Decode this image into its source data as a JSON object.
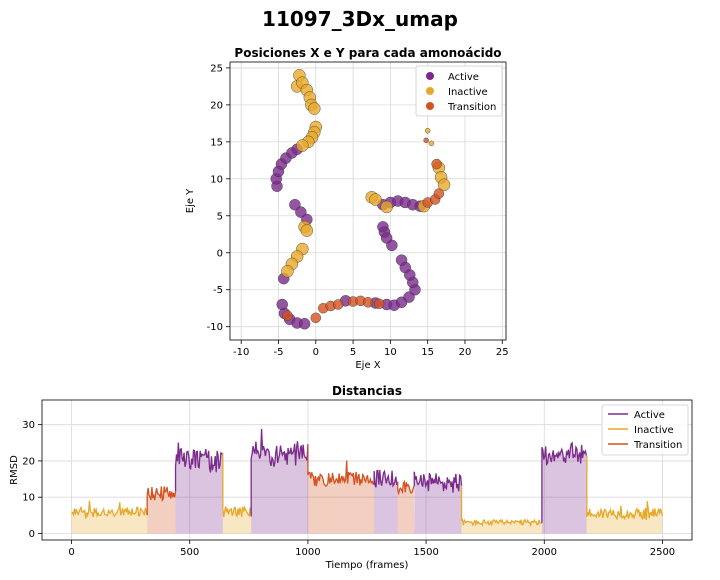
{
  "figure": {
    "title": "11097_3Dx_umap"
  },
  "colors": {
    "Active": "#7b2a8c",
    "Inactive": "#e8a92a",
    "Transition": "#d4521f"
  },
  "chart_data": [
    {
      "type": "scatter",
      "title": "Posiciones X e Y para cada amonoácido",
      "xlabel": "Eje X",
      "ylabel": "Eje Y",
      "xlim": [
        -11.5,
        25.5
      ],
      "ylim": [
        -11.8,
        25.8
      ],
      "xticks": [
        -10,
        -5,
        0,
        5,
        10,
        15,
        20,
        25
      ],
      "yticks": [
        -10,
        -5,
        0,
        5,
        10,
        15,
        20,
        25
      ],
      "grid": true,
      "legend_position": "top-right",
      "series": [
        {
          "name": "Active",
          "points": [
            [
              -5.2,
              9.0
            ],
            [
              -5.3,
              10.0
            ],
            [
              -5.0,
              11.0
            ],
            [
              -4.6,
              12.0
            ],
            [
              -4.0,
              12.8
            ],
            [
              -3.2,
              13.5
            ],
            [
              -2.5,
              14.0
            ],
            [
              -2.8,
              6.5
            ],
            [
              -2.0,
              5.5
            ],
            [
              -1.2,
              4.5
            ],
            [
              -4.3,
              -3.5
            ],
            [
              -4.5,
              -7.0
            ],
            [
              -4.2,
              -8.2
            ],
            [
              -3.5,
              -9.0
            ],
            [
              -2.5,
              -9.5
            ],
            [
              -1.5,
              -9.6
            ],
            [
              4.0,
              -6.5
            ],
            [
              8.0,
              -6.8
            ],
            [
              9.5,
              -7.0
            ],
            [
              10.5,
              -7.1
            ],
            [
              11.5,
              -6.7
            ],
            [
              12.5,
              -6.0
            ],
            [
              13.3,
              -5.0
            ],
            [
              13.0,
              -4.0
            ],
            [
              12.6,
              -3.0
            ],
            [
              12.0,
              -2.0
            ],
            [
              11.5,
              -1.0
            ],
            [
              10.2,
              1.0
            ],
            [
              9.0,
              3.5
            ],
            [
              9.2,
              2.8
            ],
            [
              9.5,
              2.0
            ],
            [
              9.0,
              6.5
            ],
            [
              10.0,
              6.8
            ],
            [
              11.0,
              7.0
            ],
            [
              12.0,
              6.8
            ],
            [
              13.0,
              6.5
            ],
            [
              14.0,
              6.3
            ]
          ]
        },
        {
          "name": "Inactive",
          "points": [
            [
              -2.5,
              22.5
            ],
            [
              -2.2,
              24.0
            ],
            [
              -1.8,
              23.0
            ],
            [
              -1.2,
              22.0
            ],
            [
              -0.8,
              21.0
            ],
            [
              -0.6,
              20.0
            ],
            [
              -0.2,
              19.5
            ],
            [
              0.0,
              17.0
            ],
            [
              -0.2,
              16.3
            ],
            [
              -0.5,
              15.6
            ],
            [
              -1.0,
              15.0
            ],
            [
              -1.8,
              14.5
            ],
            [
              -1.5,
              3.5
            ],
            [
              -1.2,
              3.0
            ],
            [
              -1.8,
              0.5
            ],
            [
              -2.5,
              -0.5
            ],
            [
              -3.2,
              -1.5
            ],
            [
              -3.8,
              -2.5
            ],
            [
              7.5,
              7.5
            ],
            [
              8.0,
              7.2
            ],
            [
              15.0,
              16.5
            ],
            [
              15.5,
              14.8
            ],
            [
              16.5,
              11.5
            ],
            [
              16.8,
              10.2
            ],
            [
              17.2,
              9.2
            ],
            [
              9.5,
              6.2
            ],
            [
              14.5,
              6.3
            ]
          ]
        },
        {
          "name": "Transition",
          "points": [
            [
              -3.8,
              -8.5
            ],
            [
              0.0,
              -8.8
            ],
            [
              1.0,
              -7.5
            ],
            [
              2.0,
              -7.2
            ],
            [
              3.0,
              -7.0
            ],
            [
              5.0,
              -6.6
            ],
            [
              6.0,
              -6.5
            ],
            [
              7.0,
              -6.7
            ],
            [
              8.5,
              -6.9
            ],
            [
              15.0,
              6.8
            ],
            [
              16.0,
              7.2
            ],
            [
              16.5,
              8.0
            ],
            [
              14.8,
              15.2
            ],
            [
              16.2,
              12.0
            ]
          ]
        }
      ]
    },
    {
      "type": "line",
      "title": "Distancias",
      "xlabel": "Tiempo (frames)",
      "ylabel": "RMSD",
      "xlim": [
        -125,
        2625
      ],
      "ylim": [
        -1.8,
        36.8
      ],
      "xticks": [
        0,
        500,
        1000,
        1500,
        2000,
        2500
      ],
      "yticks": [
        0,
        10,
        20,
        30
      ],
      "grid": true,
      "legend_position": "top-right",
      "segments": [
        {
          "state": "Inactive",
          "start": 0,
          "end": 320,
          "level": 6,
          "noise": 1.2
        },
        {
          "state": "Transition",
          "start": 320,
          "end": 440,
          "level": 11,
          "noise": 2.0
        },
        {
          "state": "Active",
          "start": 440,
          "end": 640,
          "level": 20,
          "noise": 3.5
        },
        {
          "state": "Inactive",
          "start": 640,
          "end": 760,
          "level": 6,
          "noise": 1.5
        },
        {
          "state": "Active",
          "start": 760,
          "end": 1000,
          "level": 22,
          "noise": 3.5
        },
        {
          "state": "Transition",
          "start": 1000,
          "end": 1280,
          "level": 15,
          "noise": 2.0
        },
        {
          "state": "Active",
          "start": 1280,
          "end": 1380,
          "level": 15,
          "noise": 2.5
        },
        {
          "state": "Transition",
          "start": 1380,
          "end": 1450,
          "level": 13,
          "noise": 2.0
        },
        {
          "state": "Active",
          "start": 1450,
          "end": 1650,
          "level": 14,
          "noise": 3.0
        },
        {
          "state": "Inactive",
          "start": 1650,
          "end": 1990,
          "level": 3,
          "noise": 0.8
        },
        {
          "state": "Active",
          "start": 1990,
          "end": 2180,
          "level": 22,
          "noise": 3.0
        },
        {
          "state": "Inactive",
          "start": 2180,
          "end": 2500,
          "level": 5.5,
          "noise": 1.5
        }
      ]
    }
  ]
}
